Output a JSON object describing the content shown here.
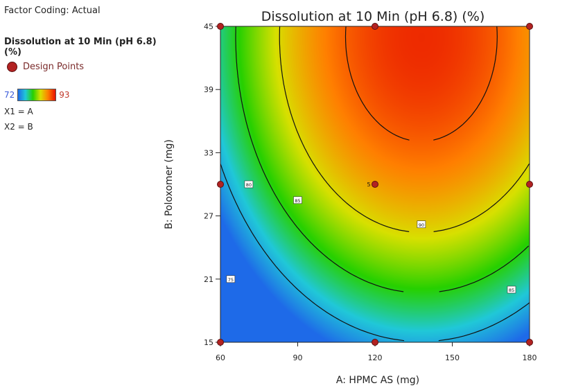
{
  "legend": {
    "factor_coding": "Factor Coding: Actual",
    "response_name": "Dissolution at 10 Min (pH 6.8) (%)",
    "design_points_label": "Design Points",
    "color_min": "72",
    "color_max": "93",
    "x1_map": "X1 = A",
    "x2_map": "X2 = B"
  },
  "chart_data": {
    "type": "contour",
    "title": "Dissolution at 10 Min (pH 6.8) (%)",
    "xlabel": "A: HPMC AS (mg)",
    "ylabel": "B: Poloxomer (mg)",
    "xlim": [
      60,
      180
    ],
    "ylim": [
      15,
      45
    ],
    "xticks": [
      "60",
      "90",
      "120",
      "150",
      "180"
    ],
    "yticks": [
      "15",
      "21",
      "27",
      "33",
      "39",
      "45"
    ],
    "color_range": [
      72,
      93
    ],
    "colors": [
      "#1e6ae8",
      "#20c8d8",
      "#26d000",
      "#d8e000",
      "#ff7f00",
      "#e81000"
    ],
    "contour_levels": [
      {
        "level": "75",
        "label_at": [
          64,
          21
        ]
      },
      {
        "level": "80",
        "label_at": [
          71,
          30
        ]
      },
      {
        "level": "85",
        "label_at": [
          90,
          28.5
        ]
      },
      {
        "level": "90",
        "label_at": [
          138,
          26.2
        ]
      },
      {
        "level": "85",
        "label_at": [
          173,
          20
        ]
      }
    ],
    "design_points": [
      {
        "x": 60,
        "y": 15
      },
      {
        "x": 60,
        "y": 30
      },
      {
        "x": 60,
        "y": 45
      },
      {
        "x": 120,
        "y": 15
      },
      {
        "x": 120,
        "y": 30
      },
      {
        "x": 120,
        "y": 45
      },
      {
        "x": 180,
        "y": 15
      },
      {
        "x": 180,
        "y": 30
      },
      {
        "x": 180,
        "y": 45
      }
    ],
    "center_point_count": "5"
  }
}
